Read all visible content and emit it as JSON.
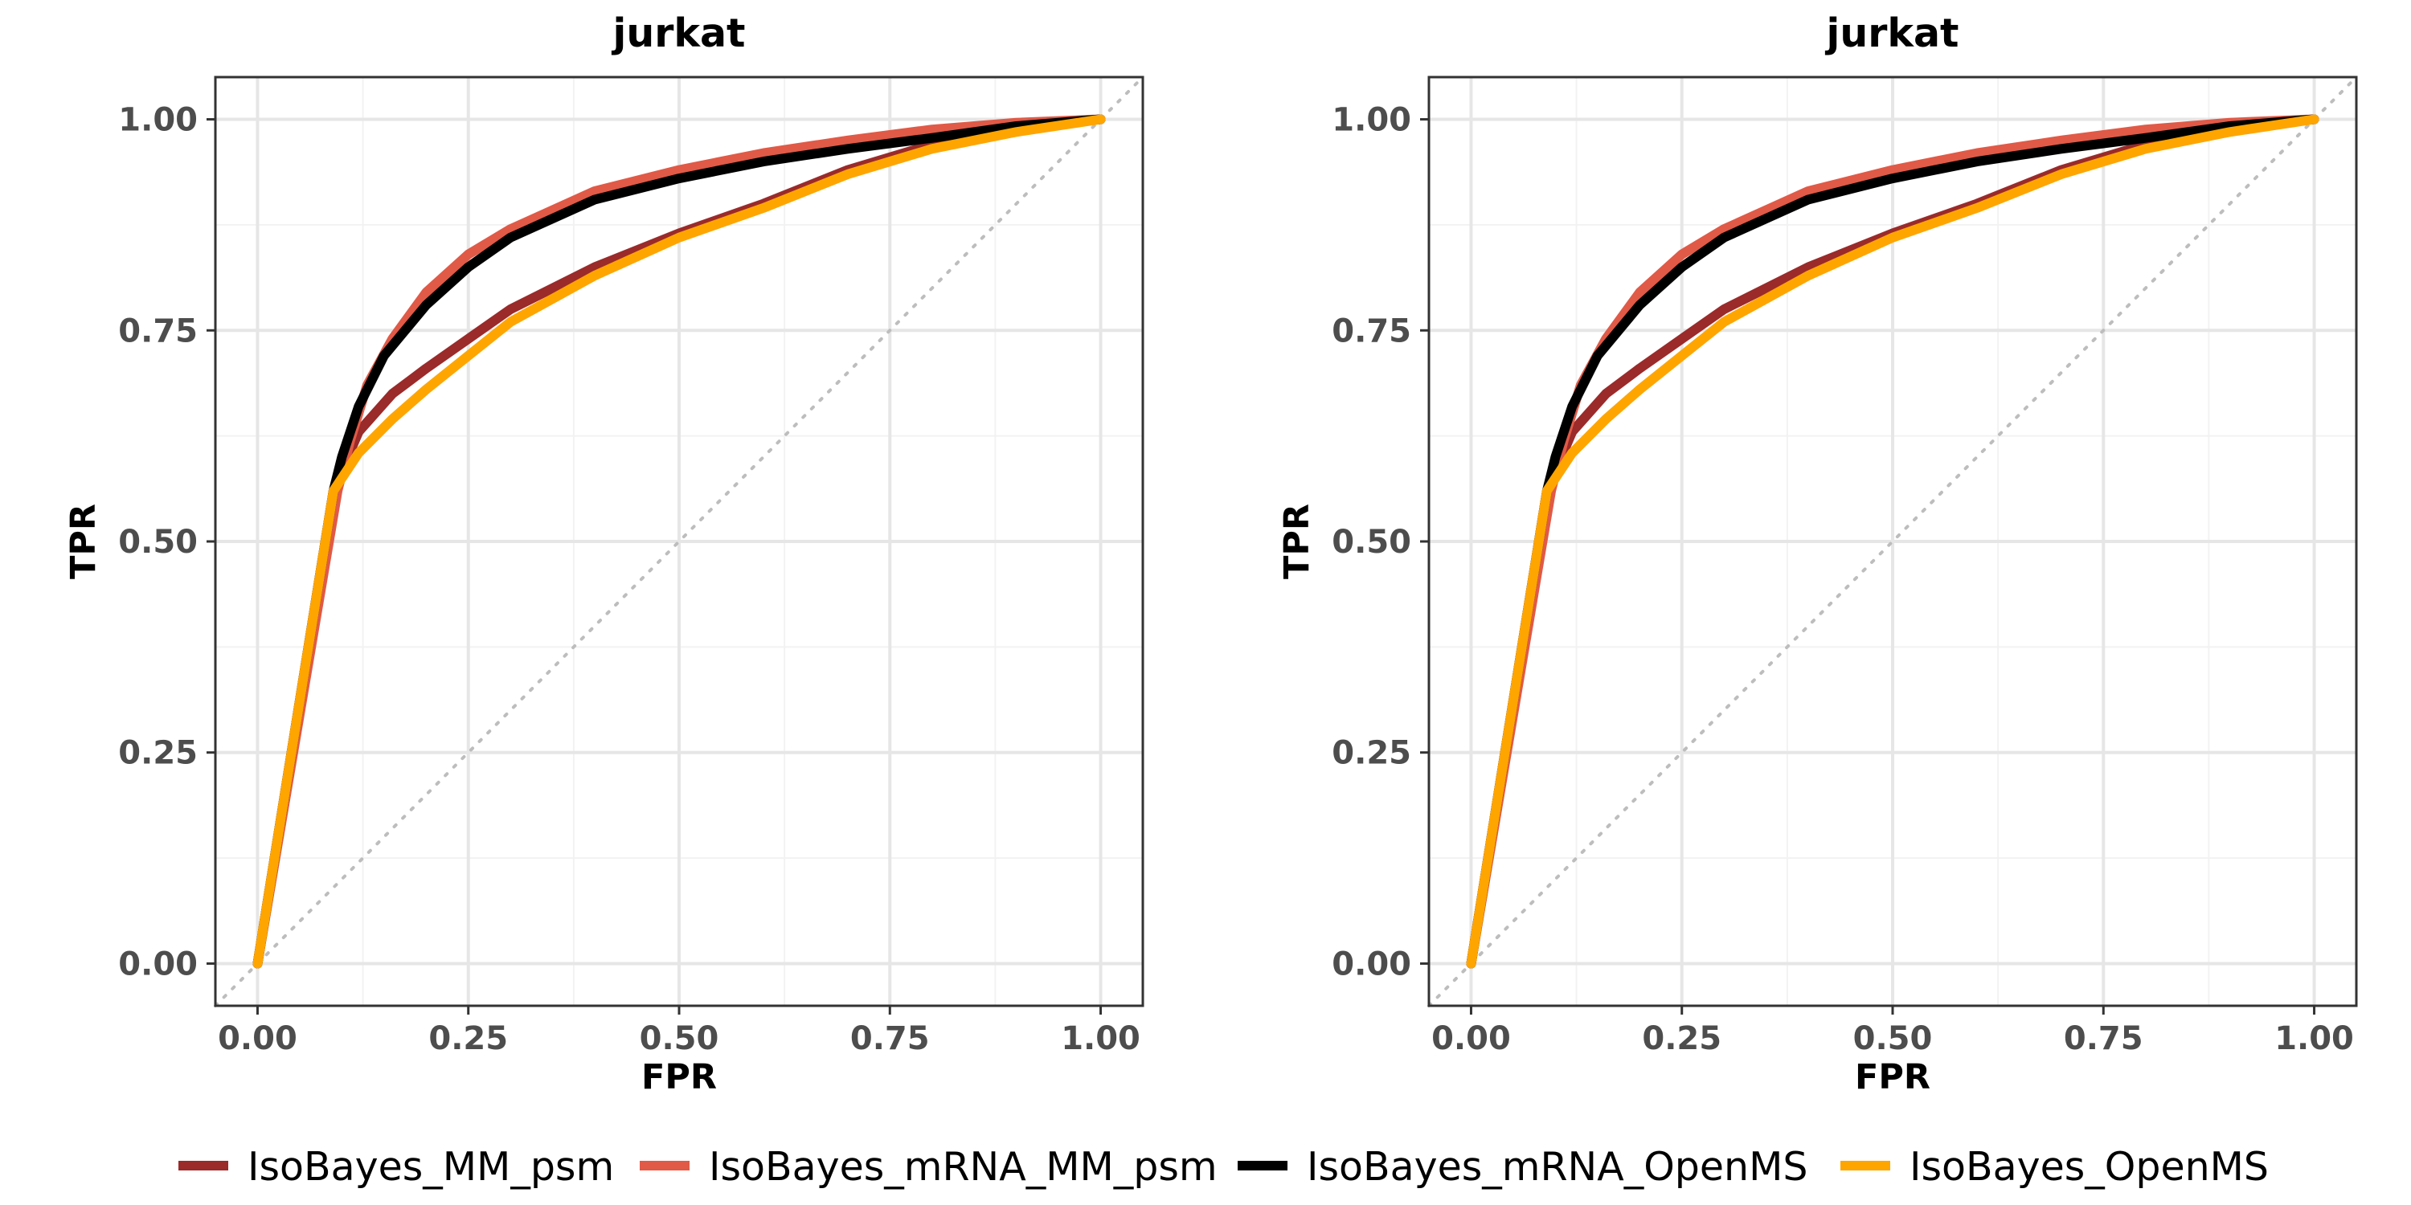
{
  "chart_data": [
    {
      "type": "line",
      "title": "jurkat",
      "xlabel": "FPR",
      "ylabel": "TPR",
      "xlim": [
        -0.05,
        1.05
      ],
      "ylim": [
        -0.05,
        1.05
      ],
      "xticks": [
        "0.00",
        "0.25",
        "0.50",
        "0.75",
        "1.00"
      ],
      "yticks": [
        "0.00",
        "0.25",
        "0.50",
        "0.75",
        "1.00"
      ],
      "grid": true,
      "legend_position": "bottom",
      "reference_line": "diagonal dotted y = x",
      "series": [
        {
          "name": "IsoBayes_MM_psm",
          "color": "#9b2a2a",
          "x": [
            0,
            0.09,
            0.12,
            0.16,
            0.2,
            0.25,
            0.3,
            0.4,
            0.5,
            0.6,
            0.7,
            0.8,
            0.9,
            1.0
          ],
          "y": [
            0,
            0.56,
            0.63,
            0.675,
            0.705,
            0.74,
            0.775,
            0.825,
            0.865,
            0.9,
            0.94,
            0.97,
            0.99,
            1.0
          ]
        },
        {
          "name": "IsoBayes_mRNA_MM_psm",
          "color": "#e05a47",
          "x": [
            0,
            0.095,
            0.11,
            0.13,
            0.16,
            0.2,
            0.25,
            0.3,
            0.4,
            0.5,
            0.6,
            0.7,
            0.8,
            0.9,
            1.0
          ],
          "y": [
            0,
            0.56,
            0.62,
            0.685,
            0.74,
            0.795,
            0.84,
            0.87,
            0.915,
            0.94,
            0.96,
            0.975,
            0.988,
            0.996,
            1.0
          ]
        },
        {
          "name": "IsoBayes_mRNA_OpenMS",
          "color": "#000000",
          "x": [
            0,
            0.09,
            0.1,
            0.12,
            0.15,
            0.2,
            0.25,
            0.3,
            0.4,
            0.5,
            0.6,
            0.7,
            0.8,
            0.9,
            1.0
          ],
          "y": [
            0,
            0.56,
            0.6,
            0.66,
            0.72,
            0.78,
            0.825,
            0.86,
            0.905,
            0.93,
            0.95,
            0.965,
            0.978,
            0.992,
            1.0
          ]
        },
        {
          "name": "IsoBayes_OpenMS",
          "color": "#ffa500",
          "x": [
            0,
            0.09,
            0.12,
            0.16,
            0.2,
            0.25,
            0.3,
            0.4,
            0.5,
            0.6,
            0.7,
            0.8,
            0.9,
            1.0
          ],
          "y": [
            0,
            0.56,
            0.605,
            0.645,
            0.68,
            0.72,
            0.76,
            0.815,
            0.86,
            0.895,
            0.935,
            0.965,
            0.985,
            1.0
          ]
        }
      ]
    },
    {
      "type": "line",
      "title": "jurkat",
      "xlabel": "FPR",
      "ylabel": "TPR",
      "xlim": [
        -0.05,
        1.05
      ],
      "ylim": [
        -0.05,
        1.05
      ],
      "xticks": [
        "0.00",
        "0.25",
        "0.50",
        "0.75",
        "1.00"
      ],
      "yticks": [
        "0.00",
        "0.25",
        "0.50",
        "0.75",
        "1.00"
      ],
      "grid": true,
      "legend_position": "bottom",
      "reference_line": "diagonal dotted y = x",
      "series": [
        {
          "name": "IsoBayes_MM_psm",
          "color": "#9b2a2a",
          "x": [
            0,
            0.09,
            0.12,
            0.16,
            0.2,
            0.25,
            0.3,
            0.4,
            0.5,
            0.6,
            0.7,
            0.8,
            0.9,
            1.0
          ],
          "y": [
            0,
            0.56,
            0.63,
            0.675,
            0.705,
            0.74,
            0.775,
            0.825,
            0.865,
            0.9,
            0.94,
            0.97,
            0.99,
            1.0
          ]
        },
        {
          "name": "IsoBayes_mRNA_MM_psm",
          "color": "#e05a47",
          "x": [
            0,
            0.095,
            0.11,
            0.13,
            0.16,
            0.2,
            0.25,
            0.3,
            0.4,
            0.5,
            0.6,
            0.7,
            0.8,
            0.9,
            1.0
          ],
          "y": [
            0,
            0.56,
            0.62,
            0.685,
            0.74,
            0.795,
            0.84,
            0.87,
            0.915,
            0.94,
            0.96,
            0.975,
            0.988,
            0.996,
            1.0
          ]
        },
        {
          "name": "IsoBayes_mRNA_OpenMS",
          "color": "#000000",
          "x": [
            0,
            0.09,
            0.1,
            0.12,
            0.15,
            0.2,
            0.25,
            0.3,
            0.4,
            0.5,
            0.6,
            0.7,
            0.8,
            0.9,
            1.0
          ],
          "y": [
            0,
            0.56,
            0.6,
            0.66,
            0.72,
            0.78,
            0.825,
            0.86,
            0.905,
            0.93,
            0.95,
            0.965,
            0.978,
            0.992,
            1.0
          ]
        },
        {
          "name": "IsoBayes_OpenMS",
          "color": "#ffa500",
          "x": [
            0,
            0.09,
            0.12,
            0.16,
            0.2,
            0.25,
            0.3,
            0.4,
            0.5,
            0.6,
            0.7,
            0.8,
            0.9,
            1.0
          ],
          "y": [
            0,
            0.56,
            0.605,
            0.645,
            0.68,
            0.72,
            0.76,
            0.815,
            0.86,
            0.895,
            0.935,
            0.965,
            0.985,
            1.0
          ]
        }
      ]
    }
  ],
  "legend": {
    "items": [
      {
        "label": "IsoBayes_MM_psm",
        "color": "#9b2a2a"
      },
      {
        "label": "IsoBayes_mRNA_MM_psm",
        "color": "#e05a47"
      },
      {
        "label": "IsoBayes_mRNA_OpenMS",
        "color": "#000000"
      },
      {
        "label": "IsoBayes_OpenMS",
        "color": "#ffa500"
      }
    ]
  }
}
